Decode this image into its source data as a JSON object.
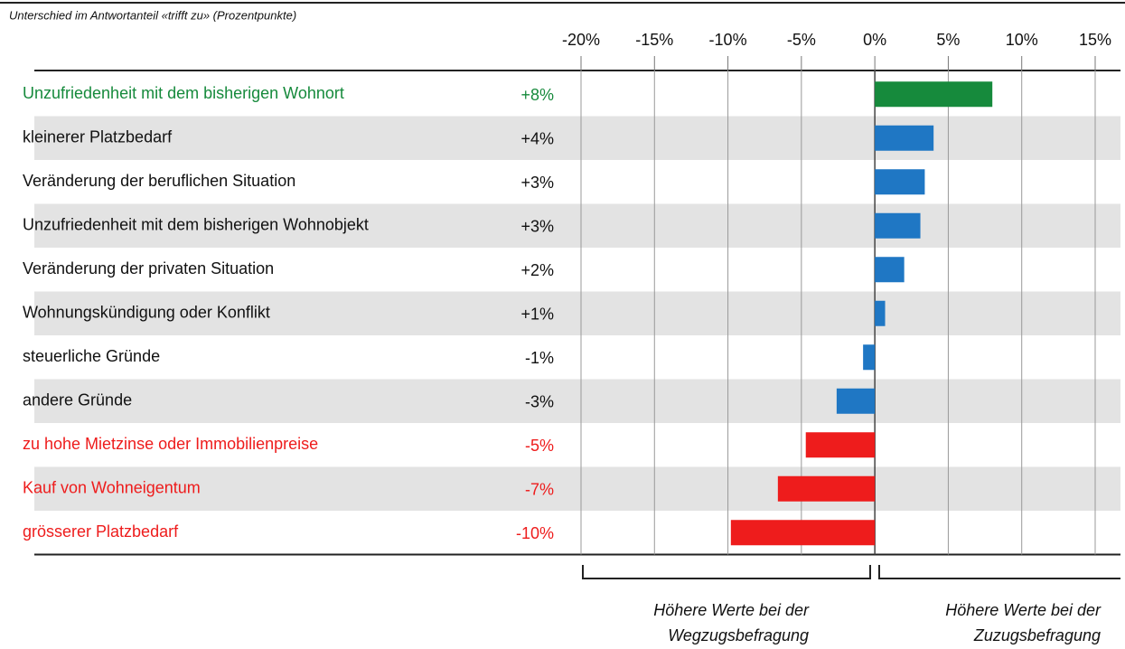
{
  "chart_data": {
    "type": "hbar",
    "title": "Unterschied im Antwortanteil «trifft zu» (Prozentpunkte)",
    "categories": [
      "Unzufriedenheit mit dem bisherigen Wohnort",
      "kleinerer Platzbedarf",
      "Veränderung der beruflichen Situation",
      "Unzufriedenheit mit dem bisherigen Wohnobjekt",
      "Veränderung der privaten Situation",
      "Wohnungskündigung oder Konflikt",
      "steuerliche Gründe",
      "andere Gründe",
      "zu hohe Mietzinse oder Immobilienpreise",
      "Kauf von Wohneigentum",
      "grösserer Platzbedarf"
    ],
    "values": [
      8,
      4,
      3.4,
      3.1,
      2,
      0.7,
      -0.8,
      -2.6,
      -4.7,
      -6.6,
      -9.8
    ],
    "value_labels": [
      "+8%",
      "+4%",
      "+3%",
      "+3%",
      "+2%",
      "+1%",
      "-1%",
      "-3%",
      "-5%",
      "-7%",
      "-10%"
    ],
    "colors": [
      "#168a3c",
      "#1f77c4",
      "#1f77c4",
      "#1f77c4",
      "#1f77c4",
      "#1f77c4",
      "#1f77c4",
      "#1f77c4",
      "#ee1c1c",
      "#ee1c1c",
      "#ee1c1c"
    ],
    "label_colors": [
      "#168a3c",
      "#111111",
      "#111111",
      "#111111",
      "#111111",
      "#111111",
      "#111111",
      "#111111",
      "#ee1c1c",
      "#ee1c1c",
      "#ee1c1c"
    ],
    "xlim": [
      -20,
      15
    ],
    "xticks": [
      {
        "value": -20,
        "label": "-20%"
      },
      {
        "value": -15,
        "label": "-15%"
      },
      {
        "value": -10,
        "label": "-10%"
      },
      {
        "value": -5,
        "label": "-5%"
      },
      {
        "value": 0,
        "label": "0%"
      },
      {
        "value": 5,
        "label": "5%"
      },
      {
        "value": 10,
        "label": "10%"
      },
      {
        "value": 15,
        "label": "15%"
      }
    ],
    "grid": true,
    "annotations": [
      [
        "Höhere Werte bei der",
        "Wegzugsbefragung"
      ],
      [
        "Höhere Werte bei der",
        "Zuzugsbefragung"
      ]
    ]
  }
}
